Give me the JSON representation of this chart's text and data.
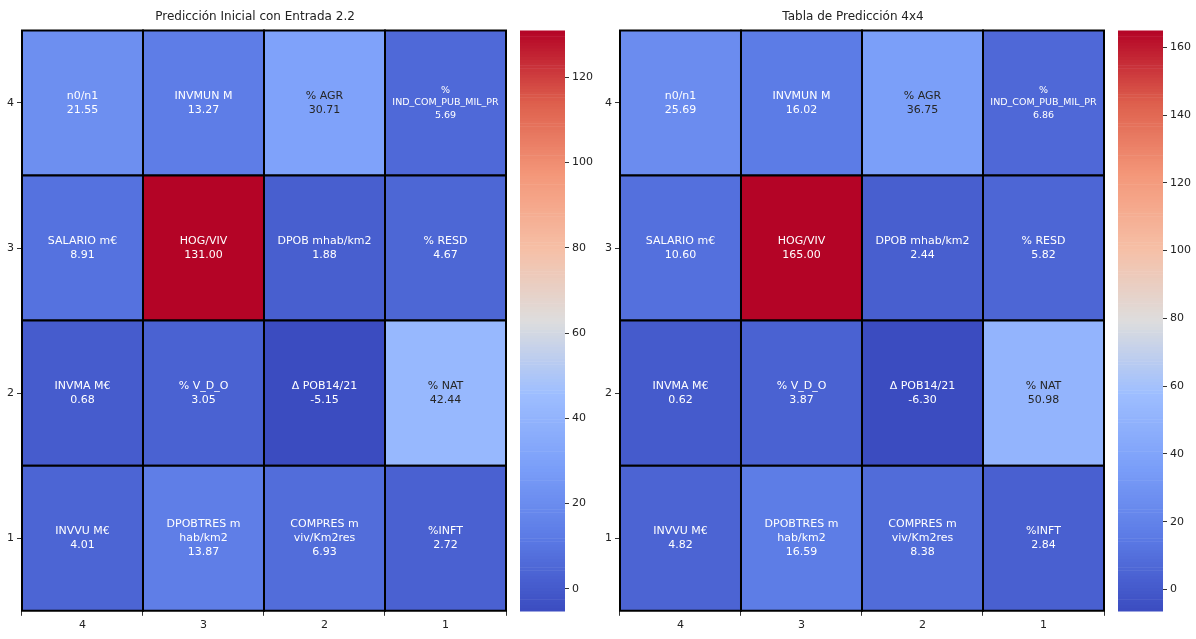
{
  "chart_data": [
    {
      "type": "heatmap",
      "title": "Predicción Inicial con Entrada 2.2",
      "categories": [
        "4",
        "3",
        "2",
        "1"
      ],
      "y_categories": [
        "4",
        "3",
        "2",
        "1"
      ],
      "cells": [
        [
          21.55,
          13.27,
          30.71,
          5.69
        ],
        [
          8.91,
          131.0,
          1.88,
          4.67
        ],
        [
          0.68,
          3.05,
          -5.15,
          42.44
        ],
        [
          4.01,
          13.87,
          6.93,
          2.72
        ]
      ],
      "cell_labels": [
        [
          "n0/n1\n21.55",
          "INVMUN M\n13.27",
          "% AGR\n30.71",
          "% IND_COM_PUB_MIL_PR\n5.69"
        ],
        [
          "SALARIO m€\n8.91",
          "HOG/VIV\n131.00",
          "DPOB mhab/km2\n1.88",
          "% RESD\n4.67"
        ],
        [
          "INVMA M€\n0.68",
          "% V_D_O\n3.05",
          "Δ POB14/21\n-5.15",
          "% NAT\n42.44"
        ],
        [
          "INVVU M€\n4.01",
          "DPOBTRES m hab/km2\n13.87",
          "COMPRES m viv/Km2res\n6.93",
          "%INFT\n2.72"
        ]
      ],
      "clim": [
        -5.15,
        131.0
      ],
      "cticks": [
        0,
        20,
        40,
        60,
        80,
        100,
        120
      ]
    },
    {
      "type": "heatmap",
      "title": "Tabla de Predicción 4x4",
      "categories": [
        "4",
        "3",
        "2",
        "1"
      ],
      "y_categories": [
        "4",
        "3",
        "2",
        "1"
      ],
      "cells": [
        [
          25.69,
          16.02,
          36.75,
          6.86
        ],
        [
          10.6,
          165.0,
          2.44,
          5.82
        ],
        [
          0.62,
          3.87,
          -6.3,
          50.98
        ],
        [
          4.82,
          16.59,
          8.38,
          2.84
        ]
      ],
      "cell_labels": [
        [
          "n0/n1\n25.69",
          "INVMUN M\n16.02",
          "% AGR\n36.75",
          "% IND_COM_PUB_MIL_PR\n6.86"
        ],
        [
          "SALARIO m€\n10.60",
          "HOG/VIV\n165.00",
          "DPOB mhab/km2\n2.44",
          "% RESD\n5.82"
        ],
        [
          "INVMA M€\n0.62",
          "% V_D_O\n3.87",
          "Δ POB14/21\n-6.30",
          "% NAT\n50.98"
        ],
        [
          "INVVU M€\n4.82",
          "DPOBTRES m hab/km2\n16.59",
          "COMPRES m viv/Km2res\n8.38",
          "%INFT\n2.84"
        ]
      ],
      "clim": [
        -6.3,
        165.0
      ],
      "cticks": [
        0,
        20,
        40,
        60,
        80,
        100,
        120,
        140,
        160
      ]
    }
  ]
}
